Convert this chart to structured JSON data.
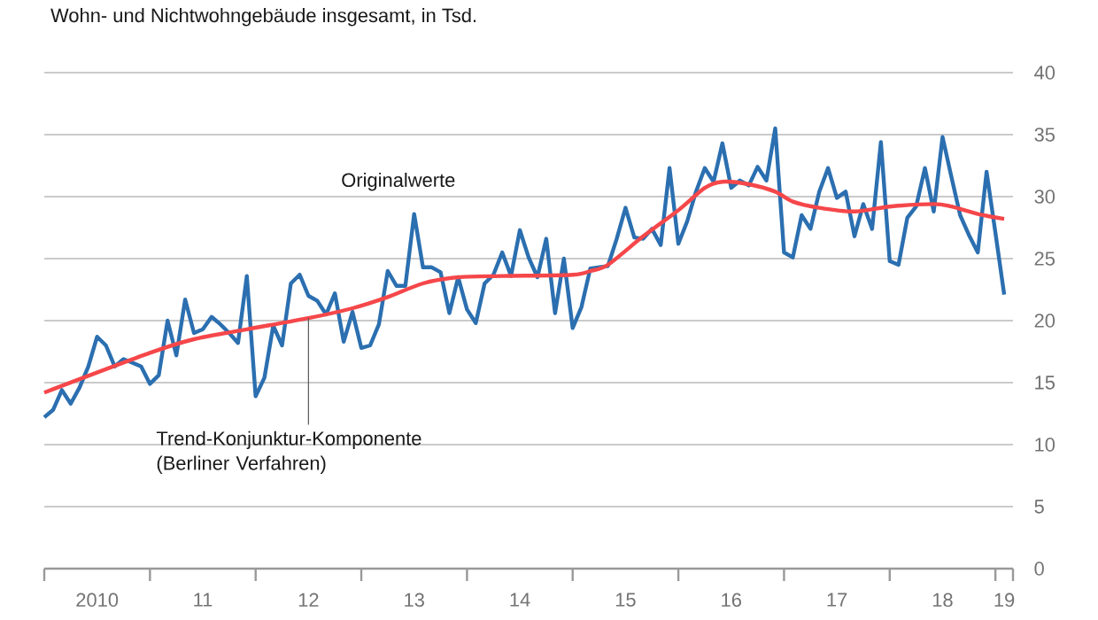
{
  "chart_data": {
    "type": "line",
    "subtitle": "Wohn- und Nichtwohngebäude insgesamt, in Tsd.",
    "x": [
      "2010-01",
      "2010-02",
      "2010-03",
      "2010-04",
      "2010-05",
      "2010-06",
      "2010-07",
      "2010-08",
      "2010-09",
      "2010-10",
      "2010-11",
      "2010-12",
      "2011-01",
      "2011-02",
      "2011-03",
      "2011-04",
      "2011-05",
      "2011-06",
      "2011-07",
      "2011-08",
      "2011-09",
      "2011-10",
      "2011-11",
      "2011-12",
      "2012-01",
      "2012-02",
      "2012-03",
      "2012-04",
      "2012-05",
      "2012-06",
      "2012-07",
      "2012-08",
      "2012-09",
      "2012-10",
      "2012-11",
      "2012-12",
      "2013-01",
      "2013-02",
      "2013-03",
      "2013-04",
      "2013-05",
      "2013-06",
      "2013-07",
      "2013-08",
      "2013-09",
      "2013-10",
      "2013-11",
      "2013-12",
      "2014-01",
      "2014-02",
      "2014-03",
      "2014-04",
      "2014-05",
      "2014-06",
      "2014-07",
      "2014-08",
      "2014-09",
      "2014-10",
      "2014-11",
      "2014-12",
      "2015-01",
      "2015-02",
      "2015-03",
      "2015-04",
      "2015-05",
      "2015-06",
      "2015-07",
      "2015-08",
      "2015-09",
      "2015-10",
      "2015-11",
      "2015-12",
      "2016-01",
      "2016-02",
      "2016-03",
      "2016-04",
      "2016-05",
      "2016-06",
      "2016-07",
      "2016-08",
      "2016-09",
      "2016-10",
      "2016-11",
      "2016-12",
      "2017-01",
      "2017-02",
      "2017-03",
      "2017-04",
      "2017-05",
      "2017-06",
      "2017-07",
      "2017-08",
      "2017-09",
      "2017-10",
      "2017-11",
      "2017-12",
      "2018-01",
      "2018-02",
      "2018-03",
      "2018-04",
      "2018-05",
      "2018-06",
      "2018-07",
      "2018-08",
      "2018-09",
      "2018-10",
      "2018-11",
      "2018-12",
      "2019-01",
      "2019-02"
    ],
    "series": [
      {
        "name": "Originalwerte",
        "color": "#2b6fb0",
        "values": [
          12.2,
          12.8,
          14.4,
          13.3,
          14.6,
          16.3,
          18.7,
          18.0,
          16.3,
          16.9,
          16.6,
          16.3,
          14.9,
          15.6,
          20.0,
          17.2,
          21.7,
          19.0,
          19.3,
          20.3,
          19.7,
          19.0,
          18.2,
          23.6,
          13.9,
          15.4,
          19.6,
          18.0,
          23.0,
          23.7,
          22.0,
          21.6,
          20.5,
          22.2,
          18.3,
          20.7,
          17.8,
          18.0,
          19.7,
          24.0,
          22.8,
          22.8,
          28.6,
          24.3,
          24.3,
          23.9,
          20.6,
          23.5,
          20.9,
          19.8,
          23.0,
          23.7,
          25.5,
          23.6,
          27.3,
          25.1,
          23.5,
          26.6,
          20.6,
          25.0,
          19.4,
          21.1,
          24.2,
          24.3,
          24.4,
          26.6,
          29.1,
          26.7,
          26.6,
          27.4,
          26.1,
          32.3,
          26.2,
          28.0,
          30.4,
          32.3,
          31.2,
          34.3,
          30.7,
          31.3,
          30.9,
          32.4,
          31.3,
          35.5,
          25.5,
          25.1,
          28.5,
          27.4,
          30.4,
          32.3,
          29.9,
          30.4,
          26.8,
          29.4,
          27.4,
          34.4,
          24.8,
          24.5,
          28.3,
          29.2,
          32.3,
          28.8,
          34.8,
          31.6,
          28.5,
          26.9,
          25.5,
          32.0,
          27.1,
          22.1
        ]
      },
      {
        "name": "Trend-Konjunktur-Komponente (Berliner Verfahren)",
        "color": "#f5474a",
        "x": [
          "2010-01",
          "2011-01",
          "2011-06",
          "2011-12",
          "2012-07",
          "2012-12",
          "2013-04",
          "2013-08",
          "2013-12",
          "2014-05",
          "2015-01",
          "2015-03",
          "2015-05",
          "2015-09",
          "2016-01",
          "2016-04",
          "2016-06",
          "2016-09",
          "2016-12",
          "2017-02",
          "2017-05",
          "2017-09",
          "2018-01",
          "2018-06",
          "2018-08",
          "2018-11",
          "2019-02"
        ],
        "values": [
          14.2,
          17.4,
          18.5,
          19.3,
          20.2,
          21.0,
          21.9,
          23.0,
          23.5,
          23.6,
          23.7,
          24.0,
          24.5,
          26.8,
          28.9,
          30.7,
          31.2,
          31.0,
          30.4,
          29.6,
          29.1,
          28.8,
          29.2,
          29.4,
          29.2,
          28.6,
          28.2
        ]
      }
    ],
    "xlim": [
      "2010-01",
      "2019-03"
    ],
    "xticks": [
      {
        "value": "2010-01",
        "label": null
      },
      {
        "value": "2010-07",
        "label": "2010"
      },
      {
        "value": "2011-01",
        "label": null
      },
      {
        "value": "2011-07",
        "label": "11"
      },
      {
        "value": "2012-01",
        "label": null
      },
      {
        "value": "2012-07",
        "label": "12"
      },
      {
        "value": "2013-01",
        "label": null
      },
      {
        "value": "2013-07",
        "label": "13"
      },
      {
        "value": "2014-01",
        "label": null
      },
      {
        "value": "2014-07",
        "label": "14"
      },
      {
        "value": "2015-01",
        "label": null
      },
      {
        "value": "2015-07",
        "label": "15"
      },
      {
        "value": "2016-01",
        "label": null
      },
      {
        "value": "2016-07",
        "label": "16"
      },
      {
        "value": "2017-01",
        "label": null
      },
      {
        "value": "2017-07",
        "label": "17"
      },
      {
        "value": "2018-01",
        "label": null
      },
      {
        "value": "2018-07",
        "label": "18"
      },
      {
        "value": "2019-01",
        "label": null
      },
      {
        "value": "2019-02",
        "label": "19"
      },
      {
        "value": "2019-03",
        "label": null
      }
    ],
    "ylim": [
      0,
      40
    ],
    "yticks": [
      0,
      5,
      10,
      15,
      20,
      25,
      30,
      35,
      40
    ],
    "grid": "y"
  }
}
